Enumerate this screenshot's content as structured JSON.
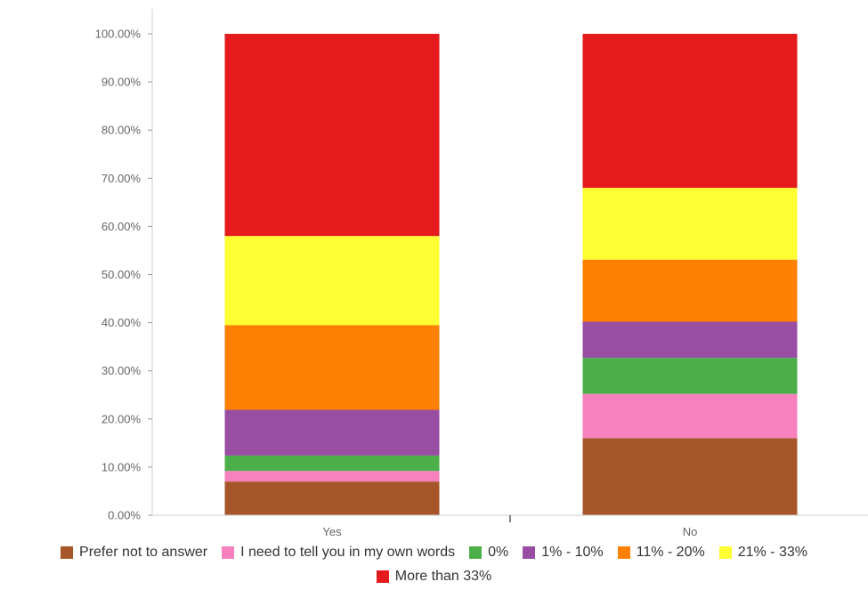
{
  "chart_data": {
    "type": "bar",
    "stacked": true,
    "categories": [
      "Yes",
      "No"
    ],
    "series": [
      {
        "name": "Prefer not to answer",
        "color": "#a65628",
        "values": [
          7.0,
          16.0
        ]
      },
      {
        "name": "I need to tell you in my own words",
        "color": "#f781bf",
        "values": [
          2.2,
          9.2
        ]
      },
      {
        "name": "0%",
        "color": "#4daf4a",
        "values": [
          3.2,
          7.5
        ]
      },
      {
        "name": "1% - 10%",
        "color": "#984ea3",
        "values": [
          9.5,
          7.5
        ]
      },
      {
        "name": "11% - 20%",
        "color": "#ff7f00",
        "values": [
          17.6,
          12.9
        ]
      },
      {
        "name": "21% - 33%",
        "color": "#ffff33",
        "values": [
          18.5,
          14.9
        ]
      },
      {
        "name": "More than 33%",
        "color": "#e41a1c",
        "values": [
          42.0,
          32.0
        ]
      }
    ],
    "yticks": [
      "0.00%",
      "10.00%",
      "20.00%",
      "30.00%",
      "40.00%",
      "50.00%",
      "60.00%",
      "70.00%",
      "80.00%",
      "90.00%",
      "100.00%"
    ],
    "ylim": [
      0,
      100
    ],
    "legend_position": "bottom",
    "grid": false
  }
}
